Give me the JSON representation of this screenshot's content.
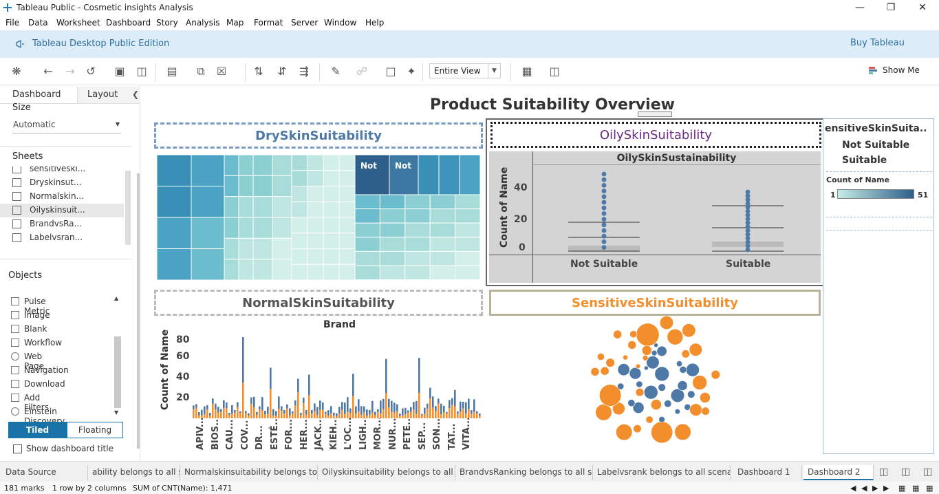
{
  "window": {
    "title": "Tableau Public - Cosmetic insights Analysis"
  },
  "menu": [
    "File",
    "Data",
    "Worksheet",
    "Dashboard",
    "Story",
    "Analysis",
    "Map",
    "Format",
    "Server",
    "Window",
    "Help"
  ],
  "banner": {
    "edition": "Tableau Desktop Public Edition",
    "buy": "Buy Tableau"
  },
  "toolbar": {
    "fit": "Entire View",
    "show_me": "Show Me"
  },
  "left_panel": {
    "tabs": [
      "Dashboard",
      "Layout"
    ],
    "size_label": "Size",
    "size_value": "Automatic",
    "sheets_label": "Sheets",
    "sheets": [
      "sensitiveski...",
      "Dryskinsut...",
      "Normalskin...",
      "Oilyskinsuit...",
      "BrandvsRa...",
      "Labelvsran..."
    ],
    "objects_label": "Objects",
    "objects": [
      "Pulse Metric",
      "Image",
      "Blank",
      "Workflow",
      "Web Page",
      "Navigation",
      "Download",
      "Add Filters",
      "Einstein Discovery"
    ],
    "tiled": "Tiled",
    "floating": "Floating",
    "show_title": "Show dashboard title"
  },
  "dashboard": {
    "title": "Product Suitability Overview",
    "dry_title": "DrySkinSuitability",
    "normal_title": "NormalSkinSuitability",
    "oily_title": "OilySkinSuitability",
    "sensitive_title": "SensitiveSkinSuitability",
    "treemap_labels": [
      "Not",
      "Not"
    ],
    "oily_chart": {
      "header": "OilySkinSustainability",
      "ylabel": "Count of Name",
      "yticks": [
        "40",
        "20",
        "0"
      ],
      "categories": [
        "Not Suitable",
        "Suitable"
      ]
    },
    "normal_chart": {
      "header": "Brand",
      "ylabel": "Count of Name",
      "yticks": [
        "80",
        "60",
        "40",
        "20"
      ],
      "brands": [
        "APIV...",
        "BIOS...",
        "CAU...",
        "COV...",
        "DR...",
        "ESTÉ...",
        "FOR...",
        "HER...",
        "JACK...",
        "KIEH...",
        "L'OC...",
        "LIGH...",
        "MOR...",
        "NUR...",
        "PETE...",
        "SEP...",
        "SON...",
        "TAT...",
        "VITA..."
      ]
    },
    "legend": {
      "filter_title": "ensitiveSkinSuita..",
      "items": [
        "Not Suitable",
        "Suitable"
      ],
      "color_title": "Count of Name",
      "min": "1",
      "max": "51"
    },
    "colors": {
      "blue": "#4e79a7",
      "orange": "#f28e2b",
      "teal": "#2c7fb8"
    }
  },
  "bottom_tabs": [
    "Data Source",
    "ability belongs to all s...",
    "Normalskinsuitability belongs to...",
    "Oilyskinsuitability belongs to all ...",
    "BrandvsRanking belongs to all s...",
    "Labelvsrank belongs to all scena...",
    "Dashboard 1",
    "Dashboard 2"
  ],
  "status": {
    "marks": "181 marks",
    "layout": "1 row by 2 columns",
    "sum": "SUM of CNT(Name): 1,471"
  }
}
